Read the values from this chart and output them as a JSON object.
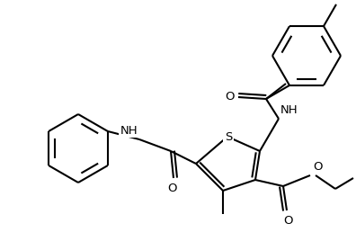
{
  "bg_color": "#ffffff",
  "line_color": "#000000",
  "lw": 1.5,
  "dbo": 0.012,
  "figsize": [
    3.96,
    2.78
  ],
  "dpi": 100,
  "xlim": [
    0,
    396
  ],
  "ylim": [
    0,
    278
  ],
  "font_size": 9.5
}
